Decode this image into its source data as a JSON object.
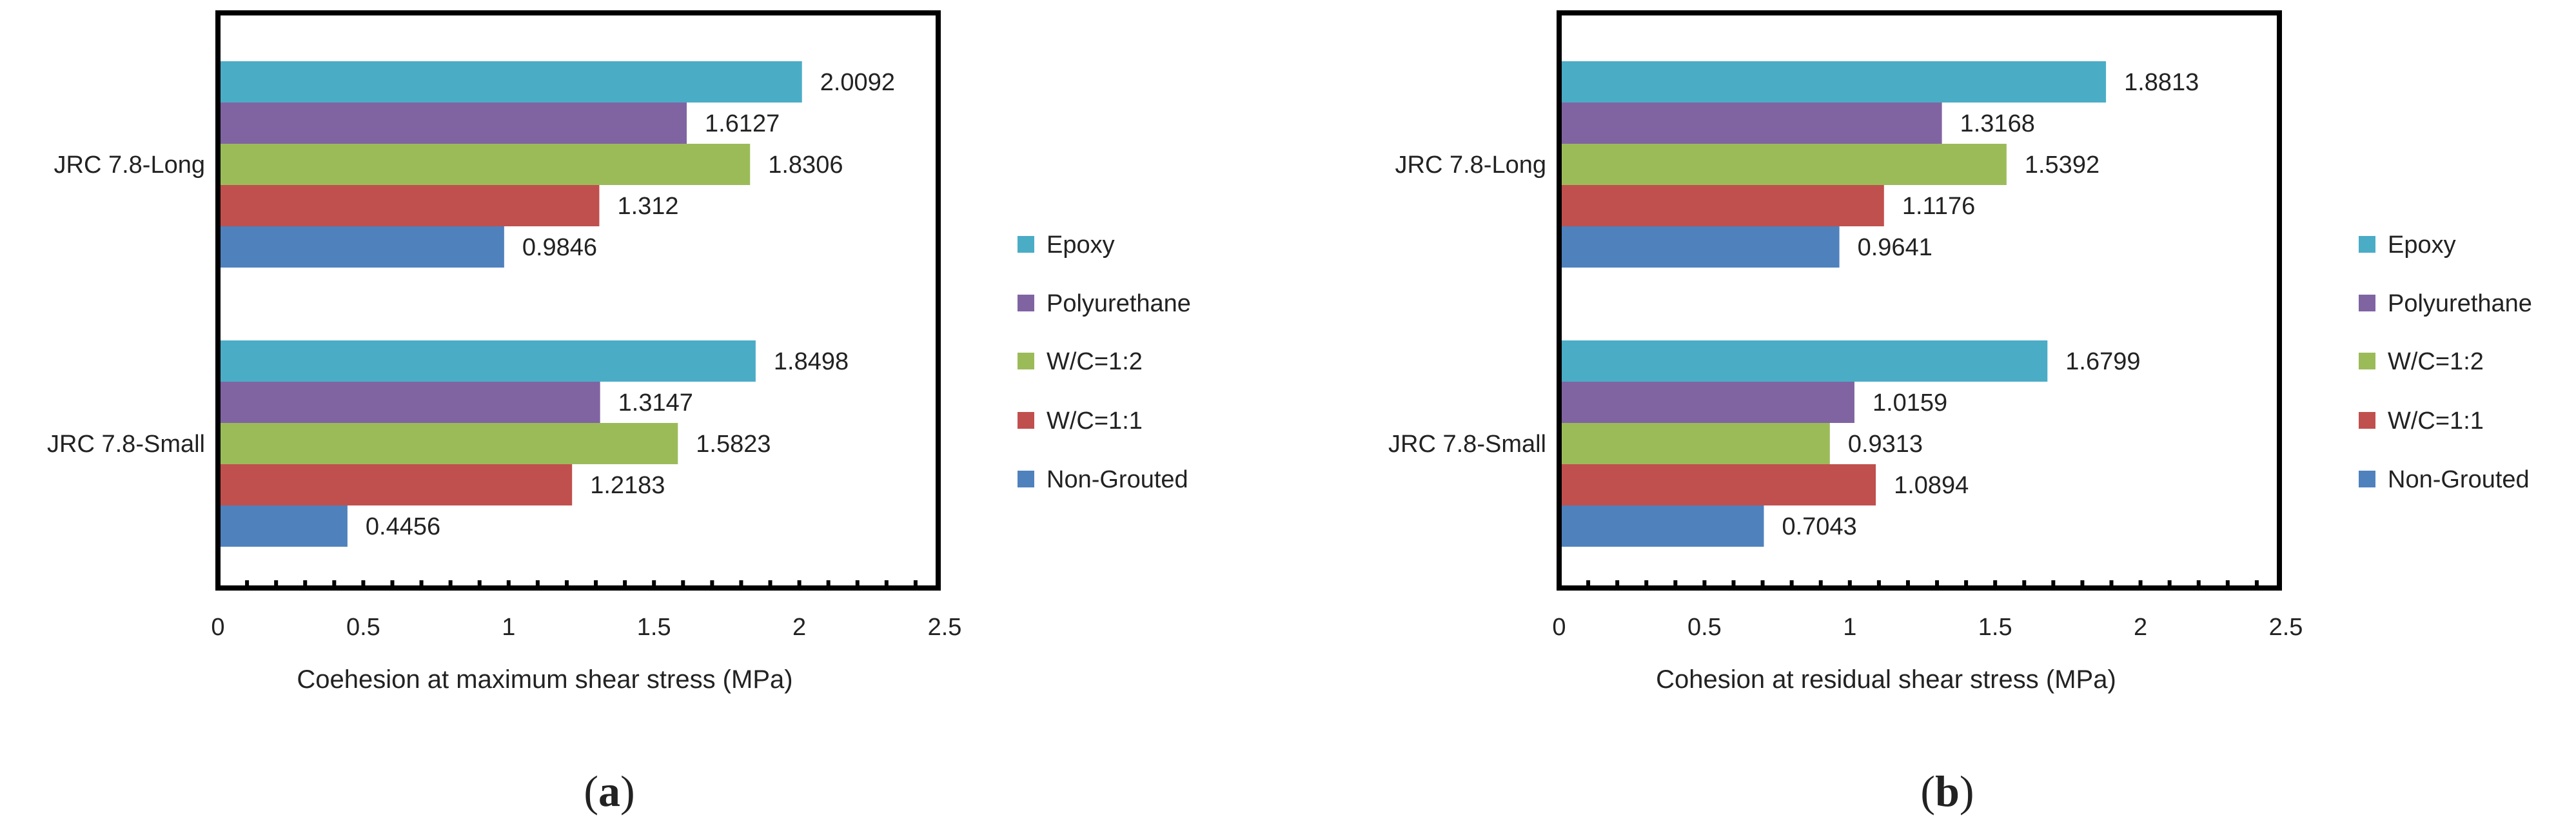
{
  "colors": {
    "Epoxy": "#4BACC6",
    "Polyurethane": "#8064A2",
    "W/C=1:2": "#9BBB59",
    "W/C=1:1": "#C0504D",
    "Non-Grouted": "#4F81BD"
  },
  "panels": [
    {
      "caption_letter": "a",
      "chart_data": {
        "type": "bar",
        "orientation": "horizontal",
        "categories": [
          "JRC 7.8-Long",
          "JRC 7.8-Small"
        ],
        "series": [
          {
            "name": "Epoxy",
            "values": [
              2.0092,
              1.8498
            ],
            "labels": [
              "2.0092",
              "1.8498"
            ]
          },
          {
            "name": "Polyurethane",
            "values": [
              1.6127,
              1.3147
            ],
            "labels": [
              "1.6127",
              "1.3147"
            ]
          },
          {
            "name": "W/C=1:2",
            "values": [
              1.8306,
              1.5823
            ],
            "labels": [
              "1.8306",
              "1.5823"
            ]
          },
          {
            "name": "W/C=1:1",
            "values": [
              1.312,
              1.2183
            ],
            "labels": [
              "1.312",
              "1.2183"
            ]
          },
          {
            "name": "Non-Grouted",
            "values": [
              0.9846,
              0.4456
            ],
            "labels": [
              "0.9846",
              "0.4456"
            ]
          }
        ],
        "xlabel": "Coehesion at maximum shear stress (MPa)",
        "xlim": [
          0,
          2.5
        ],
        "xticks": [
          "0",
          "0.5",
          "1",
          "1.5",
          "2",
          "2.5"
        ],
        "grid": false,
        "legend_position": "right"
      }
    },
    {
      "caption_letter": "b",
      "chart_data": {
        "type": "bar",
        "orientation": "horizontal",
        "categories": [
          "JRC 7.8-Long",
          "JRC 7.8-Small"
        ],
        "series": [
          {
            "name": "Epoxy",
            "values": [
              1.8813,
              1.6799
            ],
            "labels": [
              "1.8813",
              "1.6799"
            ]
          },
          {
            "name": "Polyurethane",
            "values": [
              1.3168,
              1.0159
            ],
            "labels": [
              "1.3168",
              "1.0159"
            ]
          },
          {
            "name": "W/C=1:2",
            "values": [
              1.5392,
              0.9313
            ],
            "labels": [
              "1.5392",
              "0.9313"
            ]
          },
          {
            "name": "W/C=1:1",
            "values": [
              1.1176,
              1.0894
            ],
            "labels": [
              "1.1176",
              "1.0894"
            ]
          },
          {
            "name": "Non-Grouted",
            "values": [
              0.9641,
              0.7043
            ],
            "labels": [
              "0.9641",
              "0.7043"
            ]
          }
        ],
        "xlabel": "Cohesion at residual shear stress (MPa)",
        "xlim": [
          0,
          2.5
        ],
        "xticks": [
          "0",
          "0.5",
          "1",
          "1.5",
          "2",
          "2.5"
        ],
        "grid": false,
        "legend_position": "right"
      }
    }
  ]
}
